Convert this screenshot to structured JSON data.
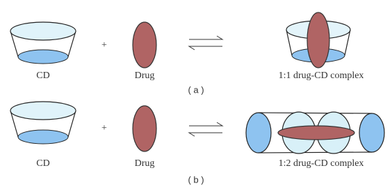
{
  "rows": [
    {
      "host_label": "CD",
      "operator": "+",
      "guest_label": "Drug",
      "product_label": "1:1 drug-CD complex",
      "caption": "( a )"
    },
    {
      "host_label": "CD",
      "operator": "+",
      "guest_label": "Drug",
      "product_label": "1:2 drug-CD complex",
      "caption": "( b )"
    }
  ]
}
